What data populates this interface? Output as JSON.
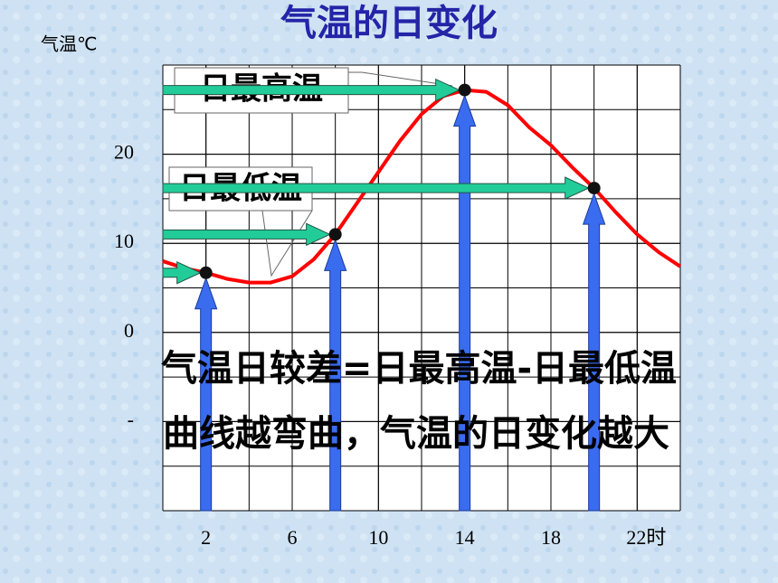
{
  "chart_data": {
    "type": "line",
    "title": "气温的日变化",
    "y_label": "气温℃",
    "x": [
      0,
      1,
      2,
      3,
      4,
      5,
      6,
      7,
      8,
      9,
      10,
      11,
      12,
      13,
      14,
      15,
      16,
      17,
      18,
      19,
      20,
      21,
      22,
      23,
      24
    ],
    "series": [
      {
        "color": "#ff0000",
        "values": [
          8,
          7.2,
          6.7,
          6,
          5.6,
          5.6,
          6.3,
          8.2,
          11,
          14.5,
          18,
          21.5,
          24.5,
          26.5,
          27.2,
          27,
          25.5,
          23,
          21,
          18.5,
          16.2,
          13.5,
          11,
          9,
          7.4
        ]
      }
    ],
    "points": {
      "x": [
        2,
        8,
        14,
        20
      ],
      "values": [
        6.7,
        11,
        27.2,
        16.2
      ]
    },
    "xlim": [
      0,
      24
    ],
    "ylim": [
      -20,
      30
    ],
    "xticks": [
      2,
      6,
      10,
      14,
      18,
      {
        "value": 22,
        "label": "22时"
      }
    ],
    "yticks": [
      {
        "value": -10,
        "label": "-"
      },
      0,
      10,
      20
    ],
    "grid": true,
    "annotations": {
      "max": "日最高温",
      "min": "日最低温",
      "range": "气温日较差=日最高温-日最低温",
      "curve": "曲线越弯曲，气温的日变化越大"
    }
  }
}
